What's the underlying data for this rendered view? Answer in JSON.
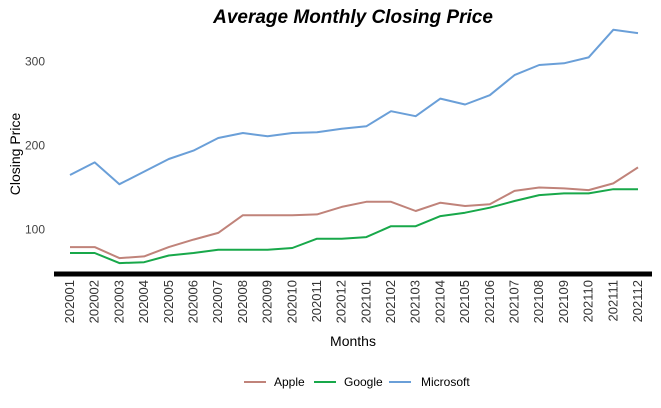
{
  "chart_data": {
    "type": "line",
    "title": "Average Monthly Closing Price",
    "xlabel": "Months",
    "ylabel": "Closing Price",
    "categories": [
      "202001",
      "202002",
      "202003",
      "202004",
      "202005",
      "202006",
      "202007",
      "202008",
      "202009",
      "202010",
      "202011",
      "202012",
      "202101",
      "202102",
      "202103",
      "202104",
      "202105",
      "202106",
      "202107",
      "202108",
      "202109",
      "202110",
      "202111",
      "202112"
    ],
    "yticks": [
      100,
      200,
      300
    ],
    "ylim": [
      47,
      352
    ],
    "grid": false,
    "legend_position": "bottom",
    "series": [
      {
        "name": "Apple",
        "color": "#c0837a",
        "values": [
          79,
          79,
          66,
          68,
          79,
          88,
          96,
          117,
          117,
          117,
          118,
          127,
          133,
          133,
          122,
          132,
          128,
          130,
          146,
          150,
          149,
          147,
          155,
          174
        ]
      },
      {
        "name": "Google",
        "color": "#18a84a",
        "values": [
          72,
          72,
          60,
          61,
          69,
          72,
          76,
          76,
          76,
          78,
          89,
          89,
          91,
          104,
          104,
          116,
          120,
          126,
          134,
          141,
          143,
          143,
          148,
          148
        ]
      },
      {
        "name": "Microsoft",
        "color": "#6a9fd8",
        "values": [
          165,
          180,
          154,
          169,
          184,
          194,
          209,
          215,
          211,
          215,
          216,
          220,
          223,
          241,
          235,
          256,
          249,
          260,
          284,
          296,
          298,
          305,
          338,
          334
        ]
      }
    ]
  }
}
